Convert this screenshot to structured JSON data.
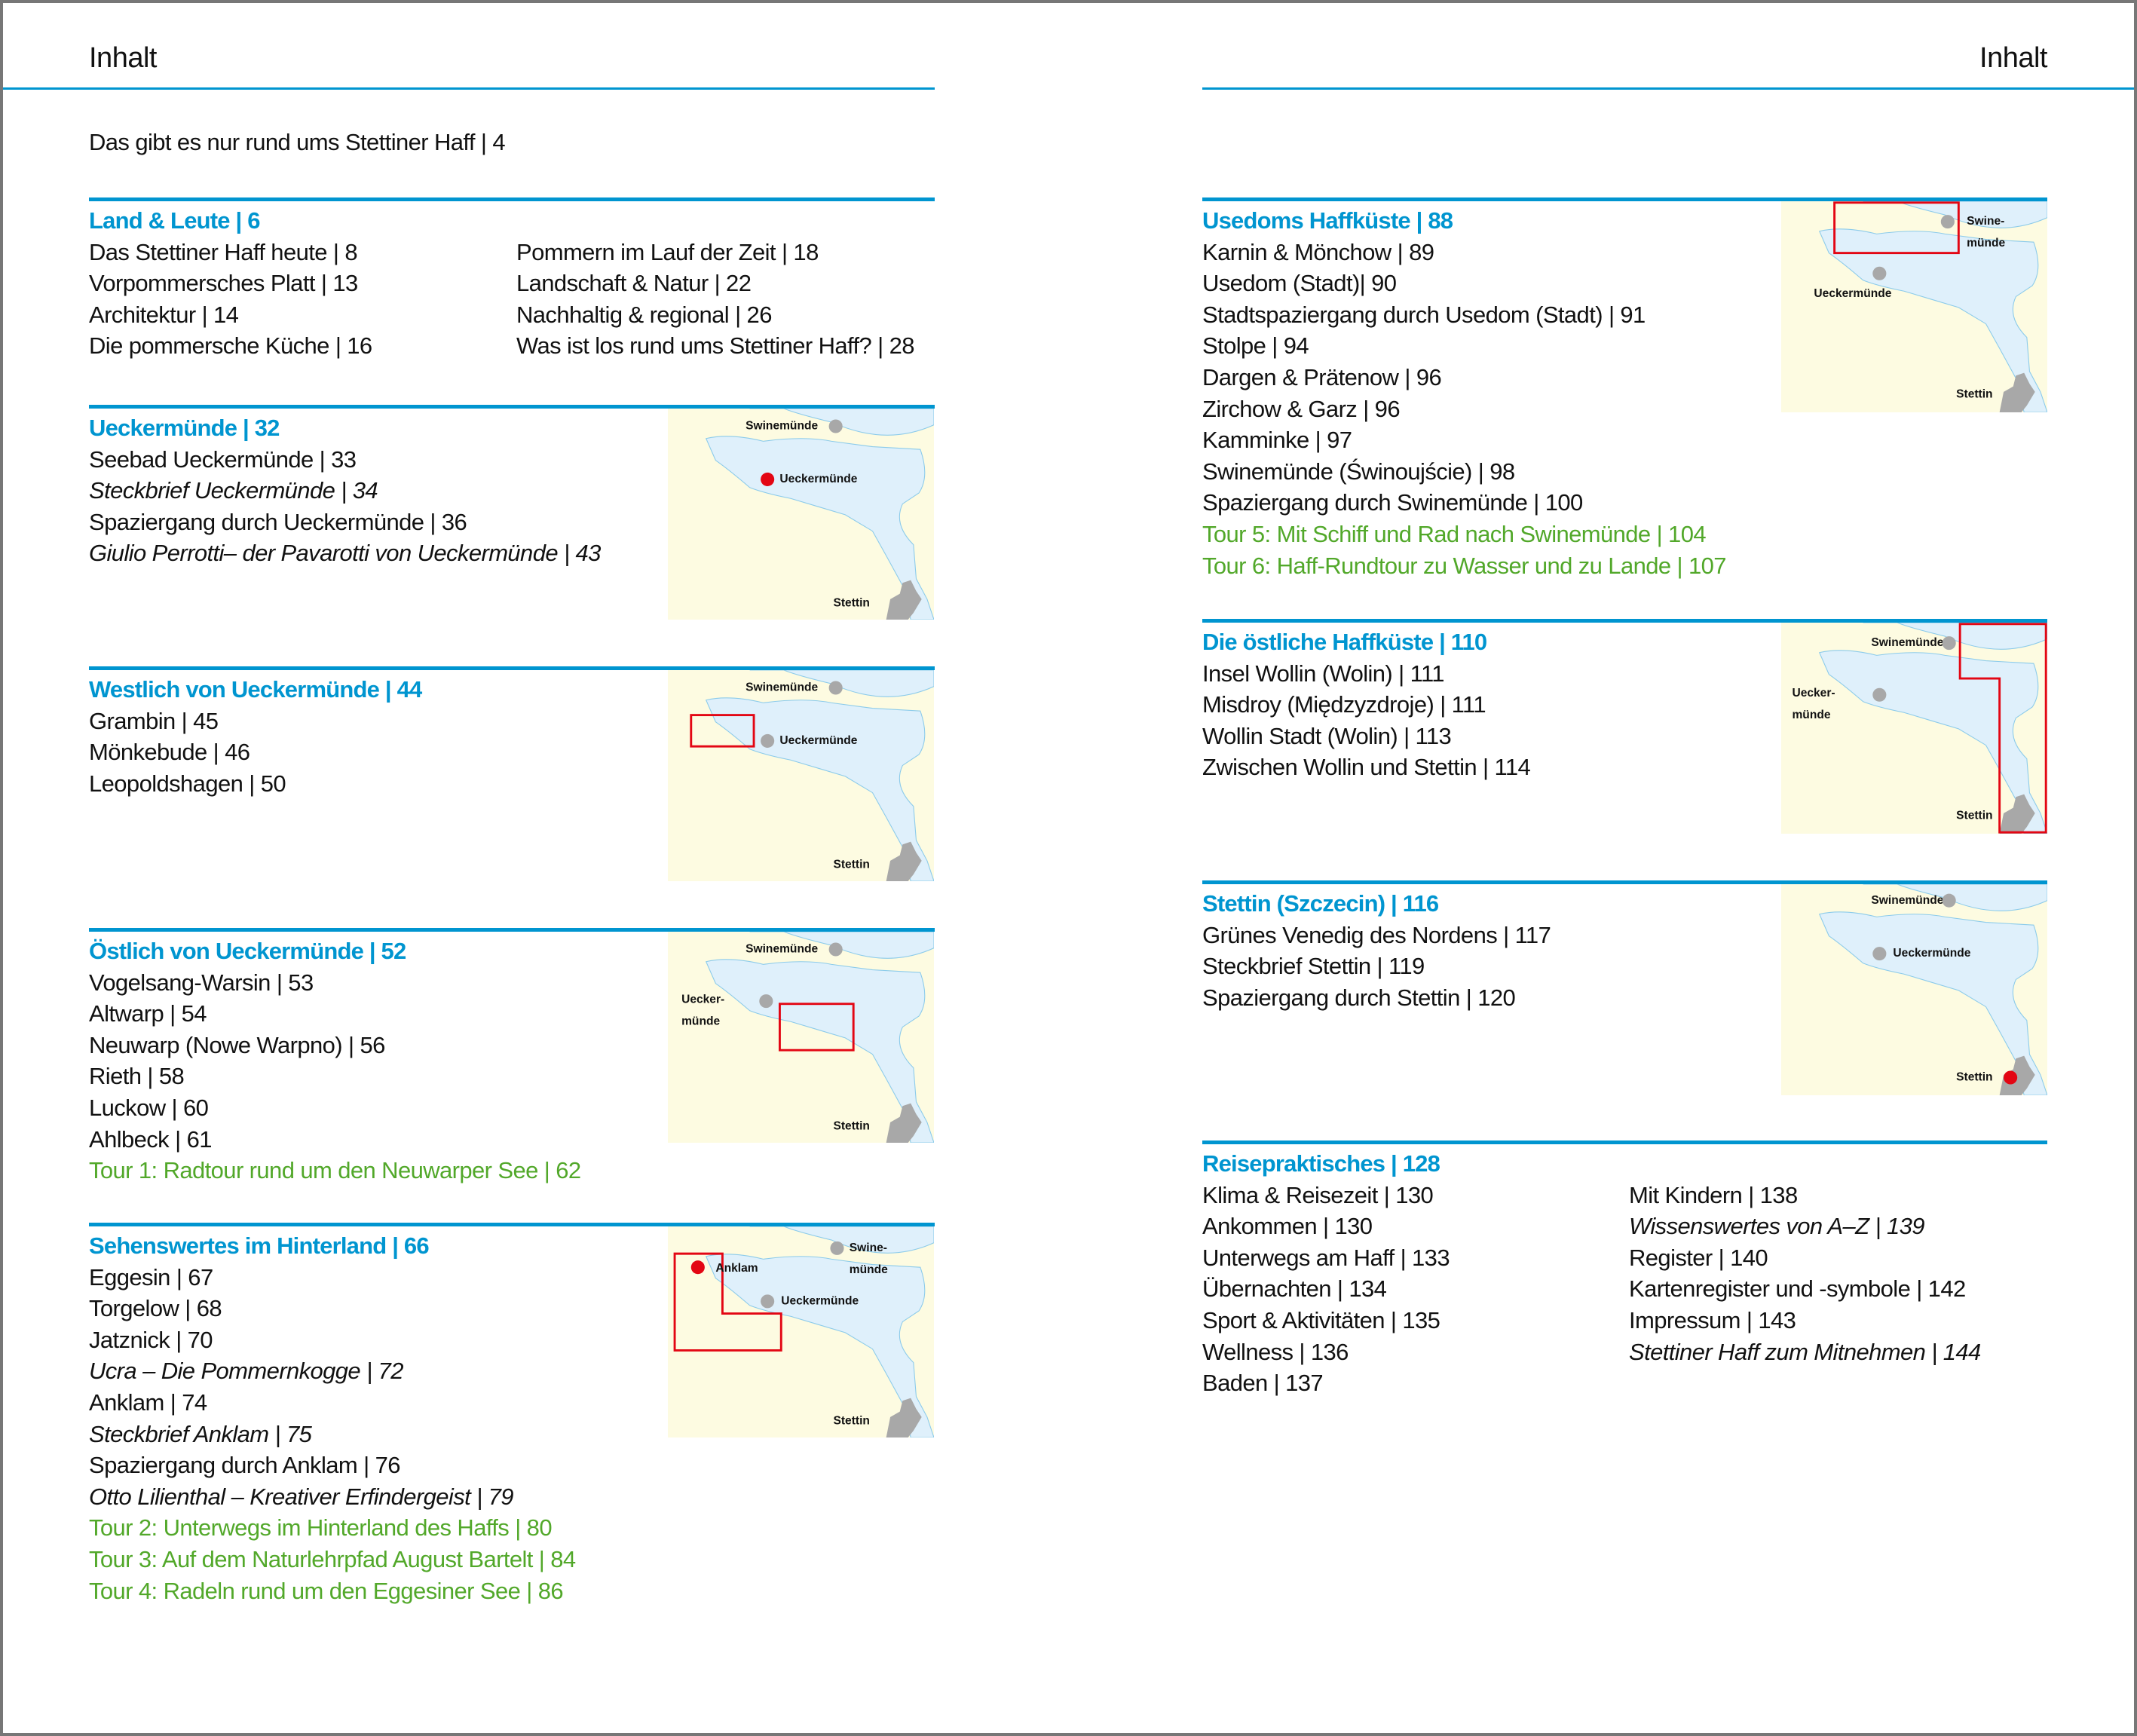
{
  "colors": {
    "accent": "#0095d0",
    "tour": "#52a82a",
    "highlight": "#e30613",
    "land": "#fdfbe1",
    "water": "#dff0fb",
    "city": "#a8a8a8"
  },
  "header": {
    "left_title": "Inhalt",
    "right_title": "Inhalt"
  },
  "intro": "Das gibt es nur rund ums Stettiner Haff | 4",
  "map_labels": {
    "swinemuende": "Swinemünde",
    "swine": "Swine-",
    "muende": "münde",
    "ueckermuende": "Ueckermünde",
    "uecker": "Uecker-",
    "stettin": "Stettin",
    "anklam": "Anklam"
  },
  "sections": [
    {
      "id": "land-leute",
      "heading": "Land & Leute | 6",
      "columns": [
        [
          {
            "text": "Das Stettiner Haff heute | 8"
          },
          {
            "text": "Vorpommersches Platt | 13"
          },
          {
            "text": "Architektur | 14"
          },
          {
            "text": "Die pommersche Küche | 16"
          }
        ],
        [
          {
            "text": "Pommern im Lauf der Zeit | 18"
          },
          {
            "text": "Landschaft & Natur | 22"
          },
          {
            "text": "Nachhaltig & regional | 26"
          },
          {
            "text": "Was ist los rund ums Stettiner Haff? | 28"
          }
        ]
      ]
    },
    {
      "id": "ueckermuende",
      "heading": "Ueckermünde | 32",
      "map": "ueckermuende",
      "columns": [
        [
          {
            "text": "Seebad Ueckermünde | 33"
          },
          {
            "text": "Steckbrief Ueckermünde | 34",
            "style": "italic"
          },
          {
            "text": "Spaziergang durch Ueckermünde | 36"
          },
          {
            "text": "Giulio Perrotti– der Pavarotti von Ueckermünde | 43",
            "style": "italic"
          }
        ]
      ]
    },
    {
      "id": "westlich",
      "heading": "Westlich von Ueckermünde | 44",
      "map": "westlich",
      "columns": [
        [
          {
            "text": "Grambin | 45"
          },
          {
            "text": "Mönkebude | 46"
          },
          {
            "text": "Leopoldshagen | 50"
          }
        ]
      ]
    },
    {
      "id": "oestlich",
      "heading": "Östlich von Ueckermünde | 52",
      "map": "oestlich",
      "columns": [
        [
          {
            "text": "Vogelsang-Warsin | 53"
          },
          {
            "text": "Altwarp | 54"
          },
          {
            "text": "Neuwarp (Nowe Warpno) | 56"
          },
          {
            "text": "Rieth | 58"
          },
          {
            "text": "Luckow | 60"
          },
          {
            "text": "Ahlbeck | 61"
          },
          {
            "text": "Tour 1: Radtour rund um den Neuwarper See | 62",
            "style": "tour"
          }
        ]
      ]
    },
    {
      "id": "hinterland",
      "heading": "Sehenswertes im Hinterland | 66",
      "map": "hinterland",
      "columns": [
        [
          {
            "text": "Eggesin | 67"
          },
          {
            "text": "Torgelow | 68"
          },
          {
            "text": "Jatznick | 70"
          },
          {
            "text": "Ucra – Die Pommernkogge | 72",
            "style": "italic"
          },
          {
            "text": "Anklam | 74"
          },
          {
            "text": "Steckbrief Anklam | 75",
            "style": "italic"
          },
          {
            "text": "Spaziergang durch Anklam | 76"
          },
          {
            "text": "Otto Lilienthal – Kreativer Erfindergeist | 79",
            "style": "italic"
          },
          {
            "text": "Tour 2: Unterwegs im Hinterland des Haffs | 80",
            "style": "tour"
          },
          {
            "text": "Tour 3: Auf dem Naturlehrpfad August Bartelt | 84",
            "style": "tour"
          },
          {
            "text": "Tour 4: Radeln rund um den Eggesiner See | 86",
            "style": "tour"
          }
        ]
      ]
    },
    {
      "id": "usedom",
      "heading": "Usedoms Haffküste | 88",
      "map": "usedom",
      "columns": [
        [
          {
            "text": "Karnin & Mönchow | 89"
          },
          {
            "text": "Usedom (Stadt)| 90"
          },
          {
            "text": "Stadtspaziergang durch Usedom (Stadt) | 91"
          },
          {
            "text": "Stolpe | 94"
          },
          {
            "text": "Dargen & Prätenow | 96"
          },
          {
            "text": "Zirchow & Garz | 96"
          },
          {
            "text": "Kamminke | 97"
          },
          {
            "text": "Swinemünde (Świnoujście) | 98"
          },
          {
            "text": "Spaziergang durch Swinemünde | 100"
          },
          {
            "text": "Tour 5: Mit Schiff und Rad nach Swinemünde | 104",
            "style": "tour"
          },
          {
            "text": "Tour 6: Haff-Rundtour zu Wasser und zu Lande | 107",
            "style": "tour"
          }
        ]
      ]
    },
    {
      "id": "oestliche-haffkueste",
      "heading": "Die östliche Haffküste | 110",
      "map": "ostkueste",
      "columns": [
        [
          {
            "text": "Insel Wollin (Wolin) | 111"
          },
          {
            "text": "Misdroy (Międzyzdroje) | 111"
          },
          {
            "text": "Wollin Stadt (Wolin) | 113"
          },
          {
            "text": "Zwischen Wollin und Stettin | 114"
          }
        ]
      ]
    },
    {
      "id": "stettin",
      "heading": "Stettin (Szczecin) | 116",
      "map": "stettin",
      "columns": [
        [
          {
            "text": "Grünes Venedig des Nordens | 117"
          },
          {
            "text": "Steckbrief Stettin | 119"
          },
          {
            "text": "Spaziergang durch Stettin | 120"
          }
        ]
      ]
    },
    {
      "id": "reisepraktisches",
      "heading": "Reisepraktisches | 128",
      "columns": [
        [
          {
            "text": "Klima & Reisezeit | 130"
          },
          {
            "text": "Ankommen | 130"
          },
          {
            "text": "Unterwegs am Haff | 133"
          },
          {
            "text": "Übernachten | 134"
          },
          {
            "text": "Sport & Aktivitäten | 135"
          },
          {
            "text": "Wellness | 136"
          },
          {
            "text": "Baden | 137"
          }
        ],
        [
          {
            "text": "Mit Kindern | 138"
          },
          {
            "text": "Wissenswertes von A–Z | 139",
            "style": "italic"
          },
          {
            "text": "Register | 140"
          },
          {
            "text": "Kartenregister und -symbole | 142"
          },
          {
            "text": "Impressum | 143"
          },
          {
            "text": "Stettiner Haff zum Mitnehmen | 144",
            "style": "italic"
          }
        ]
      ]
    }
  ]
}
